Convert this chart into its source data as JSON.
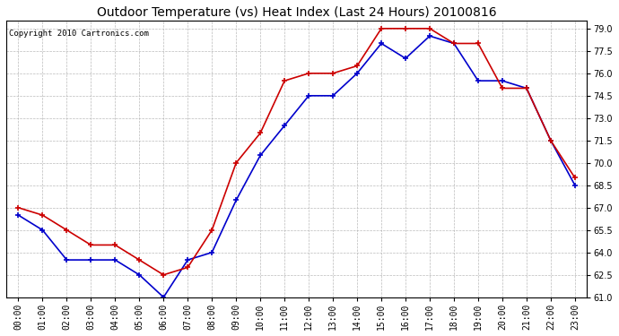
{
  "title": "Outdoor Temperature (vs) Heat Index (Last 24 Hours) 20100816",
  "copyright": "Copyright 2010 Cartronics.com",
  "hours": [
    "00:00",
    "01:00",
    "02:00",
    "03:00",
    "04:00",
    "05:00",
    "06:00",
    "07:00",
    "08:00",
    "09:00",
    "10:00",
    "11:00",
    "12:00",
    "13:00",
    "14:00",
    "15:00",
    "16:00",
    "17:00",
    "18:00",
    "19:00",
    "20:00",
    "21:00",
    "22:00",
    "23:00"
  ],
  "outdoor_temp": [
    66.5,
    65.5,
    63.5,
    63.5,
    63.5,
    62.5,
    61.0,
    63.5,
    64.0,
    67.5,
    70.5,
    72.5,
    74.5,
    74.5,
    76.0,
    78.0,
    77.0,
    78.5,
    78.0,
    75.5,
    75.5,
    75.0,
    71.5,
    68.5
  ],
  "heat_index": [
    67.0,
    66.5,
    65.5,
    64.5,
    64.5,
    63.5,
    62.5,
    63.0,
    65.5,
    70.0,
    72.0,
    75.5,
    76.0,
    76.0,
    76.5,
    79.0,
    79.0,
    79.0,
    78.0,
    78.0,
    75.0,
    75.0,
    71.5,
    69.0
  ],
  "outdoor_color": "#0000cc",
  "heat_index_color": "#cc0000",
  "bg_color": "#ffffff",
  "plot_bg_color": "#ffffff",
  "grid_color": "#aaaaaa",
  "ylim": [
    61.0,
    79.5
  ],
  "yticks": [
    61.0,
    62.5,
    64.0,
    65.5,
    67.0,
    68.5,
    70.0,
    71.5,
    73.0,
    74.5,
    76.0,
    77.5,
    79.0
  ],
  "title_fontsize": 10,
  "copyright_fontsize": 6.5,
  "tick_fontsize": 7,
  "marker": "+",
  "marker_size": 5,
  "line_width": 1.2
}
